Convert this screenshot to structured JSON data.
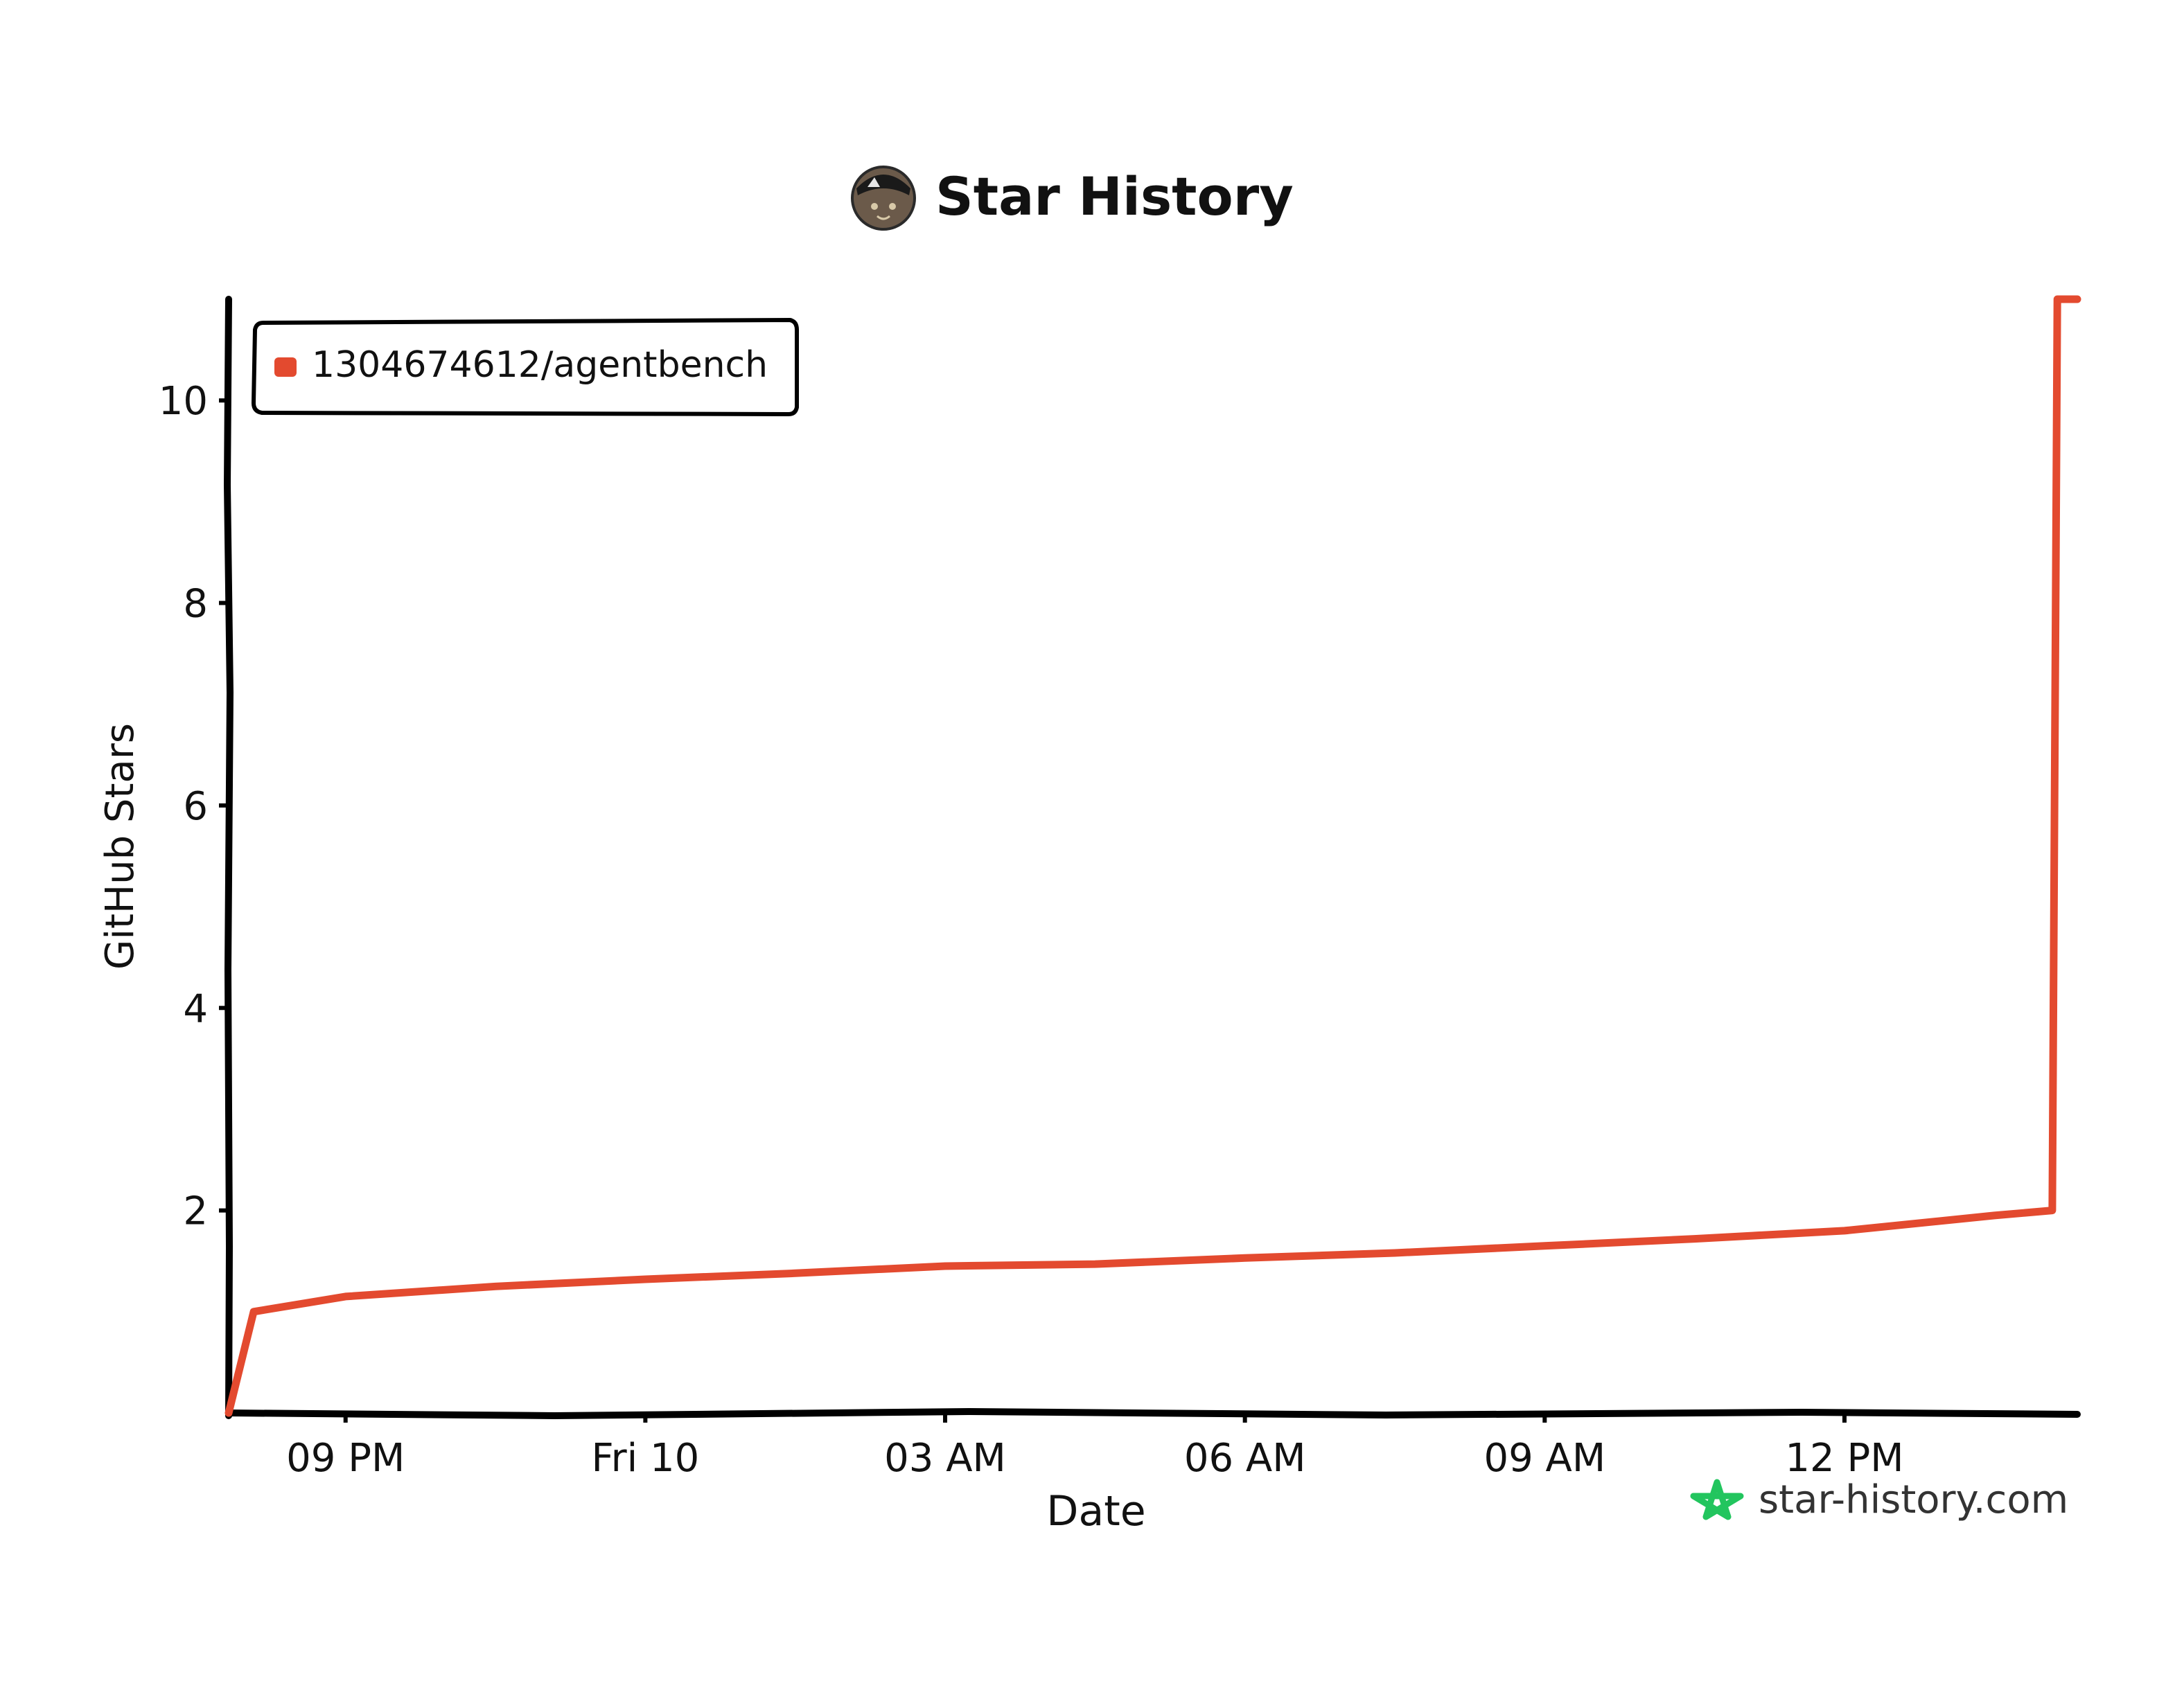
{
  "header": {
    "title": "Star History",
    "avatar_icon": "cat-avatar-icon"
  },
  "watermark": {
    "text": "star-history.com",
    "icon": "green-star-icon",
    "icon_color": "#22c55e"
  },
  "colors": {
    "series": "#e34a2f",
    "axis": "#000000",
    "text": "#111111"
  },
  "chart_data": {
    "type": "line",
    "title": "Star History",
    "xlabel": "Date",
    "ylabel": "GitHub Stars",
    "x_tick_labels": [
      "09 PM",
      "Fri 10",
      "03 AM",
      "06 AM",
      "09 AM",
      "12 PM"
    ],
    "x_ticks_hours": [
      21,
      24,
      27,
      30,
      33,
      36
    ],
    "xlim_hours": [
      19.83,
      38.33
    ],
    "y_ticks": [
      2,
      4,
      6,
      8,
      10
    ],
    "ylim": [
      0,
      11
    ],
    "grid": false,
    "legend_position": "top-left",
    "series": [
      {
        "name": "1304674612/agentbench",
        "color": "#e34a2f",
        "points": [
          {
            "x_hours": 19.83,
            "y": 0
          },
          {
            "x_hours": 20.08,
            "y": 1
          },
          {
            "x_hours": 21,
            "y": 1.15
          },
          {
            "x_hours": 22.5,
            "y": 1.25
          },
          {
            "x_hours": 24,
            "y": 1.32
          },
          {
            "x_hours": 25.5,
            "y": 1.38
          },
          {
            "x_hours": 27,
            "y": 1.45
          },
          {
            "x_hours": 28.5,
            "y": 1.47
          },
          {
            "x_hours": 30,
            "y": 1.53
          },
          {
            "x_hours": 31.5,
            "y": 1.58
          },
          {
            "x_hours": 33,
            "y": 1.65
          },
          {
            "x_hours": 34.5,
            "y": 1.72
          },
          {
            "x_hours": 36,
            "y": 1.8
          },
          {
            "x_hours": 37.5,
            "y": 1.95
          },
          {
            "x_hours": 38.08,
            "y": 2
          },
          {
            "x_hours": 38.13,
            "y": 11
          },
          {
            "x_hours": 38.33,
            "y": 11
          }
        ]
      }
    ]
  }
}
